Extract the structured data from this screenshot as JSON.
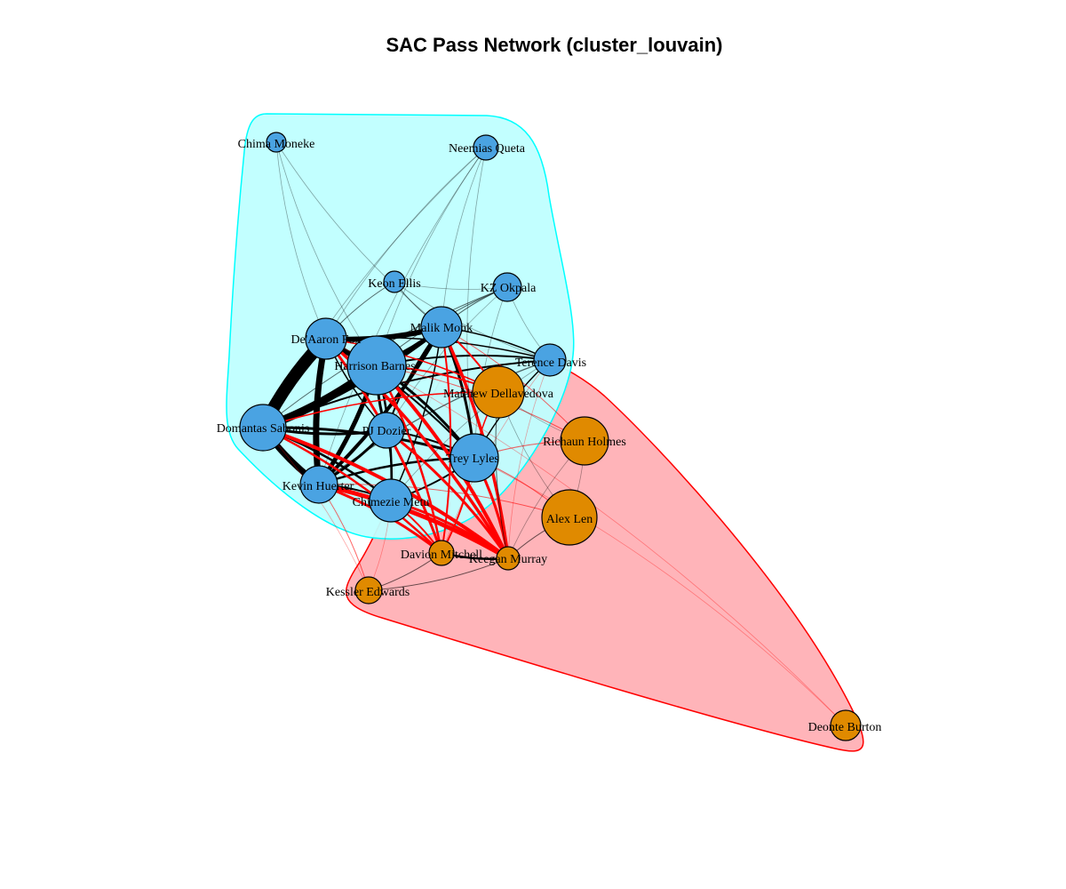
{
  "title": "SAC Pass Network (cluster_louvain)",
  "colors": {
    "cluster1_fill": "#BFFFFF",
    "cluster1_stroke": "#00FFFF",
    "cluster2_fill": "#FFB0B5",
    "cluster2_stroke": "#FF0000",
    "node_blue": "#4AA3E2",
    "node_orange": "#E08A00",
    "edge_intra": "#000000",
    "edge_inter": "#FF0000"
  },
  "nodes": [
    {
      "id": "chima",
      "label": "Chima Moneke",
      "cluster": 1
    },
    {
      "id": "neemias",
      "label": "Neemias Queta",
      "cluster": 1
    },
    {
      "id": "keon",
      "label": "Keon Ellis",
      "cluster": 1
    },
    {
      "id": "kz",
      "label": "KZ Okpala",
      "cluster": 1
    },
    {
      "id": "malik",
      "label": "Malik Monk",
      "cluster": 1
    },
    {
      "id": "deaaron",
      "label": "De'Aaron Fox",
      "cluster": 1
    },
    {
      "id": "harrison",
      "label": "Harrison Barnes",
      "cluster": 1
    },
    {
      "id": "terence",
      "label": "Terence Davis",
      "cluster": 1
    },
    {
      "id": "domantas",
      "label": "Domantas Sabonis",
      "cluster": 1
    },
    {
      "id": "pj",
      "label": "PJ Dozier",
      "cluster": 1
    },
    {
      "id": "trey",
      "label": "Trey Lyles",
      "cluster": 1
    },
    {
      "id": "kevin",
      "label": "Kevin Huerter",
      "cluster": 1
    },
    {
      "id": "chimezie",
      "label": "Chimezie Metu",
      "cluster": 1
    },
    {
      "id": "matthew",
      "label": "Matthew Dellavedova",
      "cluster": 2
    },
    {
      "id": "richaun",
      "label": "Richaun Holmes",
      "cluster": 2
    },
    {
      "id": "alex",
      "label": "Alex Len",
      "cluster": 2
    },
    {
      "id": "davion",
      "label": "Davion Mitchell",
      "cluster": 2
    },
    {
      "id": "keegan",
      "label": "Keegan Murray",
      "cluster": 2
    },
    {
      "id": "kessler",
      "label": "Kessler Edwards",
      "cluster": 2
    },
    {
      "id": "deonte",
      "label": "Deonte Burton",
      "cluster": 2
    }
  ]
}
